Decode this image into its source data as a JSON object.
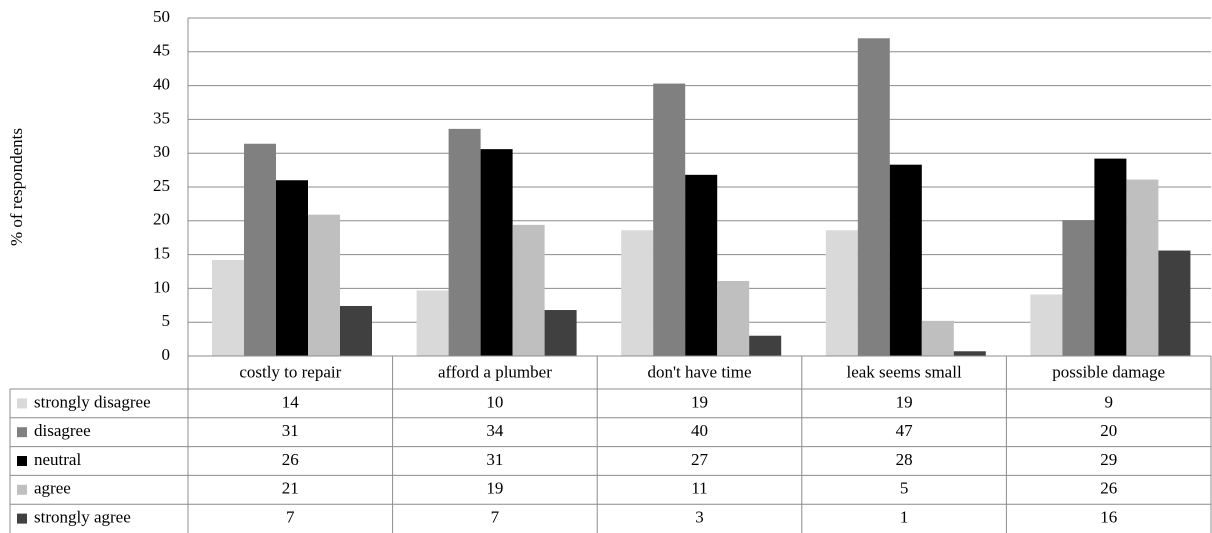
{
  "chart_data": {
    "type": "bar",
    "y_label": "% of respondents",
    "categories": [
      "costly to repair",
      "afford a plumber",
      "don't have time",
      "leak seems small",
      "possible damage"
    ],
    "series": [
      {
        "name": "strongly disagree",
        "color": "#d9d9d9",
        "values": [
          14.2,
          9.7,
          18.6,
          18.6,
          9.1
        ],
        "value_labels": [
          "14",
          "10",
          "19",
          "19",
          "9"
        ]
      },
      {
        "name": "disagree",
        "color": "#808080",
        "values": [
          31.4,
          33.6,
          40.3,
          47.0,
          20.1
        ],
        "value_labels": [
          "31",
          "34",
          "40",
          "47",
          "20"
        ]
      },
      {
        "name": "neutral",
        "color": "#000000",
        "values": [
          26.0,
          30.6,
          26.8,
          28.3,
          29.2
        ],
        "value_labels": [
          "26",
          "31",
          "27",
          "28",
          "29"
        ]
      },
      {
        "name": "agree",
        "color": "#bfbfbf",
        "values": [
          20.9,
          19.4,
          11.1,
          5.2,
          26.1
        ],
        "value_labels": [
          "21",
          "19",
          "11",
          "5",
          "26"
        ]
      },
      {
        "name": "strongly agree",
        "color": "#404040",
        "values": [
          7.4,
          6.8,
          3.0,
          0.7,
          15.6
        ],
        "value_labels": [
          "7",
          "7",
          "3",
          "1",
          "16"
        ]
      }
    ],
    "ylim": [
      0,
      50
    ],
    "yticks": [
      0,
      5,
      10,
      15,
      20,
      25,
      30,
      35,
      40,
      45,
      50
    ],
    "grid": true
  }
}
